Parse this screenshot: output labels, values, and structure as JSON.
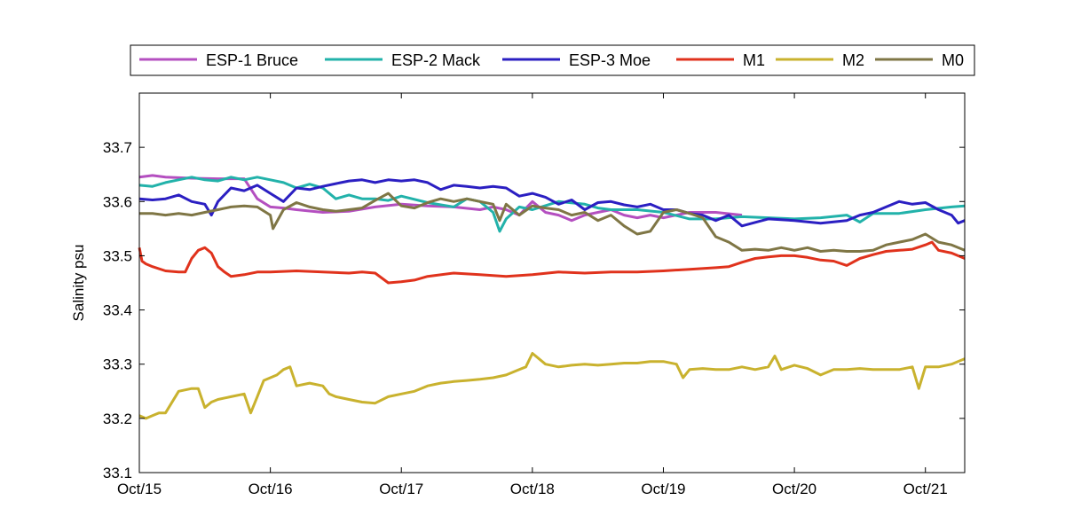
{
  "chart_data": {
    "type": "line",
    "title": "",
    "xlabel": "",
    "ylabel": "Salinity psu",
    "ylim": [
      33.1,
      33.8
    ],
    "xlim": [
      0,
      6.3
    ],
    "y_ticks": [
      33.1,
      33.2,
      33.3,
      33.4,
      33.5,
      33.6,
      33.7
    ],
    "y_tick_labels": [
      "33.1",
      "33.2",
      "33.3",
      "33.4",
      "33.5",
      "33.6",
      "33.7"
    ],
    "x_ticks": [
      0,
      1,
      2,
      3,
      4,
      5,
      6
    ],
    "x_tick_labels": [
      "Oct/15",
      "Oct/16",
      "Oct/17",
      "Oct/18",
      "Oct/19",
      "Oct/20",
      "Oct/21"
    ],
    "grid": false,
    "legend_position": "top",
    "x_units": "days since Oct/15",
    "series": [
      {
        "name": "ESP-1 Bruce",
        "color": "#b44fc0",
        "x": [
          0,
          0.1,
          0.2,
          0.4,
          0.6,
          0.8,
          0.9,
          1.0,
          1.1,
          1.2,
          1.4,
          1.6,
          1.8,
          2.0,
          2.2,
          2.4,
          2.6,
          2.7,
          2.8,
          2.9,
          3.0,
          3.1,
          3.2,
          3.3,
          3.4,
          3.5,
          3.6,
          3.7,
          3.8,
          3.9,
          4.0,
          4.2,
          4.4,
          4.6
        ],
        "values": [
          33.645,
          33.648,
          33.645,
          33.643,
          33.642,
          33.642,
          33.605,
          33.59,
          33.588,
          33.585,
          33.58,
          33.582,
          33.59,
          33.595,
          33.592,
          33.59,
          33.585,
          33.59,
          33.585,
          33.575,
          33.6,
          33.58,
          33.575,
          33.565,
          33.575,
          33.58,
          33.585,
          33.575,
          33.57,
          33.575,
          33.57,
          33.58,
          33.58,
          33.575
        ]
      },
      {
        "name": "ESP-2 Mack",
        "color": "#22b2aa",
        "x": [
          0,
          0.1,
          0.2,
          0.3,
          0.4,
          0.5,
          0.6,
          0.7,
          0.8,
          0.9,
          1.0,
          1.1,
          1.2,
          1.3,
          1.4,
          1.5,
          1.6,
          1.7,
          1.8,
          1.9,
          2.0,
          2.2,
          2.4,
          2.5,
          2.6,
          2.7,
          2.75,
          2.8,
          2.9,
          3.0,
          3.2,
          3.4,
          3.5,
          3.6,
          3.8,
          4.0,
          4.2,
          4.4,
          4.6,
          4.8,
          5.0,
          5.2,
          5.4,
          5.5,
          5.6,
          5.8,
          6.0,
          6.2,
          6.3
        ],
        "values": [
          33.63,
          33.628,
          33.635,
          33.64,
          33.645,
          33.64,
          33.638,
          33.645,
          33.64,
          33.645,
          33.64,
          33.635,
          33.625,
          33.632,
          33.625,
          33.605,
          33.612,
          33.605,
          33.605,
          33.602,
          33.61,
          33.598,
          33.59,
          33.605,
          33.6,
          33.58,
          33.545,
          33.568,
          33.59,
          33.585,
          33.6,
          33.595,
          33.588,
          33.585,
          33.585,
          33.58,
          33.568,
          33.568,
          33.572,
          33.57,
          33.568,
          33.57,
          33.575,
          33.562,
          33.578,
          33.578,
          33.585,
          33.59,
          33.592
        ]
      },
      {
        "name": "ESP-3 Moe",
        "color": "#2b1fc2",
        "x": [
          0,
          0.1,
          0.2,
          0.3,
          0.4,
          0.5,
          0.55,
          0.6,
          0.7,
          0.8,
          0.9,
          1.0,
          1.1,
          1.2,
          1.3,
          1.4,
          1.5,
          1.6,
          1.7,
          1.8,
          1.9,
          2.0,
          2.1,
          2.2,
          2.3,
          2.4,
          2.5,
          2.6,
          2.7,
          2.8,
          2.9,
          3.0,
          3.1,
          3.2,
          3.3,
          3.4,
          3.5,
          3.6,
          3.7,
          3.8,
          3.9,
          4.0,
          4.1,
          4.2,
          4.3,
          4.4,
          4.5,
          4.6,
          4.8,
          5.0,
          5.2,
          5.4,
          5.5,
          5.6,
          5.7,
          5.8,
          5.9,
          6.0,
          6.1,
          6.2,
          6.25,
          6.3
        ],
        "values": [
          33.605,
          33.603,
          33.605,
          33.612,
          33.6,
          33.595,
          33.575,
          33.6,
          33.625,
          33.62,
          33.63,
          33.615,
          33.6,
          33.625,
          33.622,
          33.628,
          33.633,
          33.638,
          33.64,
          33.635,
          33.64,
          33.638,
          33.64,
          33.635,
          33.622,
          33.63,
          33.628,
          33.625,
          33.628,
          33.625,
          33.61,
          33.615,
          33.608,
          33.595,
          33.603,
          33.585,
          33.598,
          33.6,
          33.594,
          33.59,
          33.595,
          33.585,
          33.585,
          33.578,
          33.575,
          33.565,
          33.575,
          33.555,
          33.568,
          33.565,
          33.56,
          33.565,
          33.575,
          33.58,
          33.59,
          33.6,
          33.595,
          33.598,
          33.585,
          33.575,
          33.56,
          33.565
        ]
      },
      {
        "name": "M1",
        "color": "#e0321c",
        "x": [
          0,
          0.02,
          0.05,
          0.1,
          0.2,
          0.3,
          0.35,
          0.4,
          0.45,
          0.5,
          0.55,
          0.6,
          0.65,
          0.7,
          0.8,
          0.9,
          1.0,
          1.2,
          1.4,
          1.6,
          1.7,
          1.8,
          1.9,
          2.0,
          2.1,
          2.2,
          2.4,
          2.6,
          2.8,
          3.0,
          3.2,
          3.4,
          3.6,
          3.8,
          4.0,
          4.2,
          4.4,
          4.5,
          4.6,
          4.7,
          4.8,
          4.9,
          5.0,
          5.1,
          5.2,
          5.3,
          5.4,
          5.5,
          5.6,
          5.7,
          5.8,
          5.9,
          6.0,
          6.05,
          6.1,
          6.2,
          6.3
        ],
        "values": [
          33.515,
          33.49,
          33.485,
          33.48,
          33.472,
          33.47,
          33.47,
          33.495,
          33.51,
          33.515,
          33.505,
          33.48,
          33.47,
          33.462,
          33.465,
          33.47,
          33.47,
          33.472,
          33.47,
          33.468,
          33.47,
          33.468,
          33.45,
          33.452,
          33.455,
          33.462,
          33.468,
          33.465,
          33.462,
          33.465,
          33.47,
          33.468,
          33.47,
          33.47,
          33.472,
          33.475,
          33.478,
          33.48,
          33.488,
          33.495,
          33.498,
          33.5,
          33.5,
          33.497,
          33.492,
          33.49,
          33.482,
          33.495,
          33.502,
          33.508,
          33.51,
          33.512,
          33.52,
          33.525,
          33.51,
          33.505,
          33.495
        ]
      },
      {
        "name": "M2",
        "color": "#c9b22e",
        "x": [
          0,
          0.05,
          0.1,
          0.15,
          0.2,
          0.3,
          0.4,
          0.45,
          0.5,
          0.55,
          0.6,
          0.7,
          0.8,
          0.85,
          0.9,
          0.95,
          1.0,
          1.05,
          1.1,
          1.15,
          1.2,
          1.3,
          1.4,
          1.45,
          1.5,
          1.6,
          1.7,
          1.8,
          1.9,
          2.0,
          2.1,
          2.2,
          2.3,
          2.4,
          2.5,
          2.6,
          2.7,
          2.8,
          2.9,
          2.95,
          3.0,
          3.1,
          3.2,
          3.3,
          3.4,
          3.5,
          3.6,
          3.7,
          3.8,
          3.9,
          4.0,
          4.1,
          4.15,
          4.2,
          4.3,
          4.4,
          4.5,
          4.6,
          4.7,
          4.8,
          4.85,
          4.9,
          5.0,
          5.1,
          5.2,
          5.3,
          5.4,
          5.5,
          5.6,
          5.7,
          5.8,
          5.9,
          5.95,
          6.0,
          6.1,
          6.2,
          6.3
        ],
        "values": [
          33.205,
          33.2,
          33.205,
          33.21,
          33.21,
          33.25,
          33.255,
          33.255,
          33.22,
          33.23,
          33.235,
          33.24,
          33.245,
          33.21,
          33.24,
          33.27,
          33.275,
          33.28,
          33.29,
          33.295,
          33.26,
          33.265,
          33.26,
          33.245,
          33.24,
          33.235,
          33.23,
          33.228,
          33.24,
          33.245,
          33.25,
          33.26,
          33.265,
          33.268,
          33.27,
          33.272,
          33.275,
          33.28,
          33.29,
          33.295,
          33.32,
          33.3,
          33.295,
          33.298,
          33.3,
          33.298,
          33.3,
          33.302,
          33.302,
          33.305,
          33.305,
          33.3,
          33.275,
          33.29,
          33.292,
          33.29,
          33.29,
          33.295,
          33.29,
          33.295,
          33.315,
          33.29,
          33.298,
          33.292,
          33.28,
          33.29,
          33.29,
          33.292,
          33.29,
          33.29,
          33.29,
          33.295,
          33.255,
          33.295,
          33.295,
          33.3,
          33.31
        ]
      },
      {
        "name": "M0",
        "color": "#7f7645",
        "x": [
          0,
          0.1,
          0.2,
          0.3,
          0.4,
          0.5,
          0.6,
          0.7,
          0.8,
          0.9,
          1.0,
          1.02,
          1.1,
          1.2,
          1.3,
          1.4,
          1.5,
          1.6,
          1.7,
          1.8,
          1.9,
          2.0,
          2.1,
          2.2,
          2.3,
          2.4,
          2.5,
          2.6,
          2.7,
          2.75,
          2.8,
          2.9,
          3.0,
          3.1,
          3.2,
          3.3,
          3.4,
          3.5,
          3.6,
          3.7,
          3.8,
          3.9,
          4.0,
          4.1,
          4.2,
          4.3,
          4.4,
          4.5,
          4.6,
          4.7,
          4.8,
          4.9,
          5.0,
          5.1,
          5.2,
          5.3,
          5.4,
          5.5,
          5.6,
          5.7,
          5.8,
          5.9,
          6.0,
          6.1,
          6.2,
          6.3
        ],
        "values": [
          33.578,
          33.578,
          33.575,
          33.578,
          33.575,
          33.58,
          33.585,
          33.59,
          33.592,
          33.59,
          33.575,
          33.55,
          33.585,
          33.598,
          33.59,
          33.585,
          33.582,
          33.585,
          33.588,
          33.602,
          33.615,
          33.592,
          33.588,
          33.598,
          33.605,
          33.6,
          33.605,
          33.6,
          33.595,
          33.565,
          33.595,
          33.575,
          33.592,
          33.588,
          33.585,
          33.575,
          33.58,
          33.565,
          33.575,
          33.555,
          33.54,
          33.545,
          33.58,
          33.585,
          33.578,
          33.57,
          33.535,
          33.525,
          33.51,
          33.512,
          33.51,
          33.515,
          33.51,
          33.515,
          33.508,
          33.51,
          33.508,
          33.508,
          33.51,
          33.52,
          33.525,
          33.53,
          33.54,
          33.525,
          33.52,
          33.51
        ]
      }
    ]
  }
}
